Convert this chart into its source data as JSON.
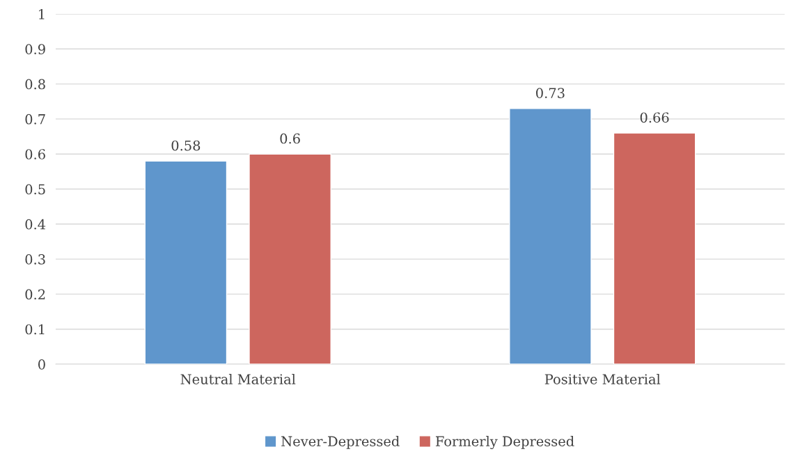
{
  "chart_data": {
    "type": "bar",
    "categories": [
      "Neutral Material",
      "Positive Material"
    ],
    "series": [
      {
        "name": "Never-Depressed",
        "color": "#5f96cc",
        "values": [
          0.58,
          0.73
        ]
      },
      {
        "name": "Formerly Depressed",
        "color": "#cd665e",
        "values": [
          0.6,
          0.66
        ]
      }
    ],
    "ylim": [
      0,
      1
    ],
    "yticks": [
      0,
      0.1,
      0.2,
      0.3,
      0.4,
      0.5,
      0.6,
      0.7,
      0.8,
      0.9,
      1
    ],
    "grid": "y",
    "legend": "bottom",
    "data_labels": true
  }
}
